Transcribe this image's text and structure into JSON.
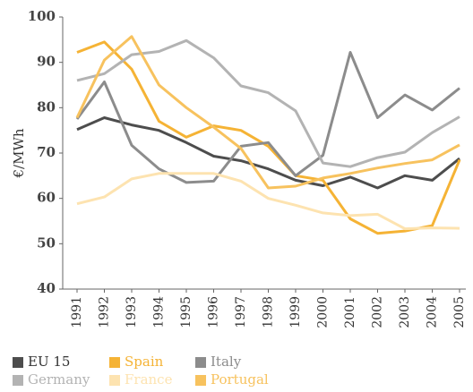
{
  "chart_data": {
    "type": "line",
    "y_label": "€/MWh",
    "categories": [
      "1991",
      "1992",
      "1993",
      "1994",
      "1995",
      "1996",
      "1997",
      "1998",
      "1999",
      "2000",
      "2001",
      "2002",
      "2003",
      "2004",
      "2005"
    ],
    "ylim": [
      40,
      100
    ],
    "yticks": [
      40,
      50,
      60,
      70,
      80,
      90,
      100
    ],
    "series": [
      {
        "name": "EU 15",
        "color": "#4d4d4d",
        "values": [
          75.2,
          77.8,
          76.2,
          75,
          72.3,
          69.3,
          68.3,
          66.5,
          64,
          62.8,
          64.7,
          62.3,
          65,
          64,
          68.8
        ]
      },
      {
        "name": "Spain",
        "color": "#f5b335",
        "values": [
          92.2,
          94.5,
          88.5,
          77,
          73.5,
          76,
          75,
          71.5,
          65,
          64,
          55.5,
          52.3,
          52.8,
          54,
          68.5
        ]
      },
      {
        "name": "Italy",
        "color": "#8c8c8c",
        "values": [
          77.5,
          85.7,
          71.7,
          66.5,
          63.5,
          63.8,
          71.5,
          72.3,
          65,
          69.5,
          92.2,
          77.8,
          82.8,
          79.5,
          84.3
        ]
      },
      {
        "name": "Germany",
        "color": "#b3b3b3",
        "values": [
          86,
          87.5,
          91.7,
          92.4,
          94.8,
          91,
          84.8,
          83.3,
          79.3,
          67.8,
          67,
          69,
          70.2,
          74.5,
          78
        ]
      },
      {
        "name": "France",
        "color": "#fde3b0",
        "values": [
          58.8,
          60.3,
          64.3,
          65.5,
          65.5,
          65.5,
          63.8,
          60,
          58.5,
          56.8,
          56.2,
          56.5,
          53.3,
          53.5,
          53.4
        ]
      },
      {
        "name": "Portugal",
        "color": "#f7c25e",
        "values": [
          77.8,
          90.5,
          95.7,
          85,
          80,
          75.7,
          71,
          62.3,
          62.7,
          64.5,
          65.5,
          66.7,
          67.7,
          68.5,
          71.8
        ]
      }
    ]
  }
}
